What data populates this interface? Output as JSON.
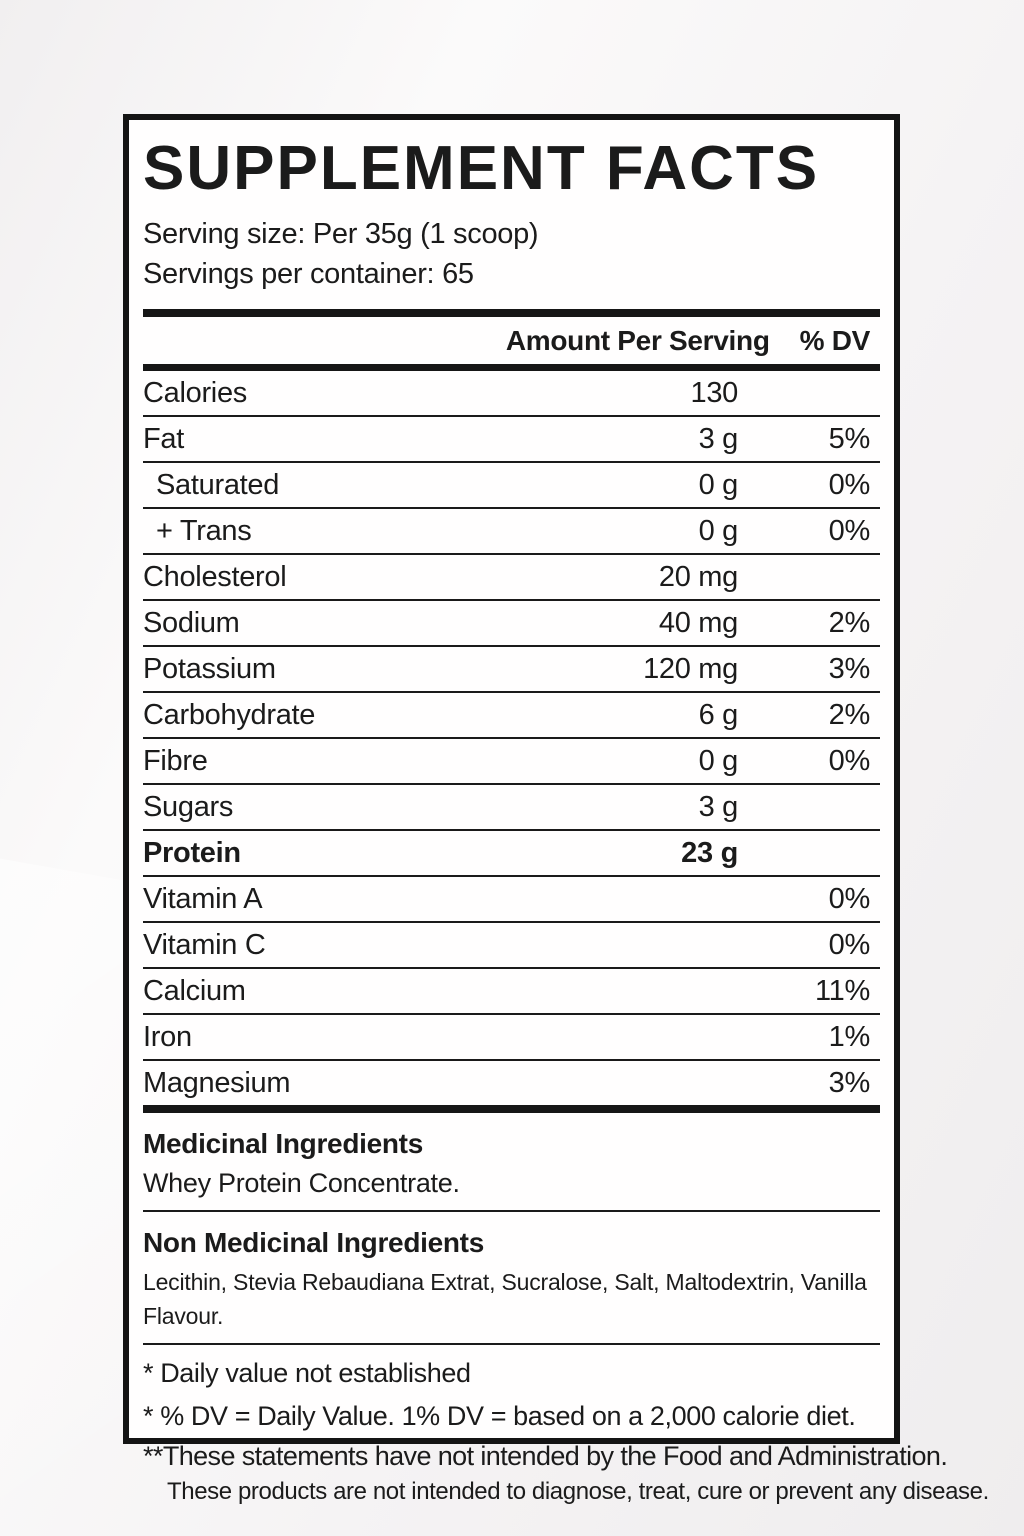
{
  "label": {
    "title": "SUPPLEMENT FACTS",
    "serving_size_line": "Serving size: Per 35g (1 scoop)",
    "servings_per_container_line": "Servings per container: 65",
    "columns": {
      "amount_header": "Amount Per Serving",
      "dv_header": "% DV"
    },
    "rows": [
      {
        "label": "Calories",
        "amount": "130",
        "dv": "",
        "bold": false,
        "indent": false
      },
      {
        "label": "Fat",
        "amount": "3 g",
        "dv": "5%",
        "bold": false,
        "indent": false
      },
      {
        "label": "Saturated",
        "amount": "0 g",
        "dv": "0%",
        "bold": false,
        "indent": true
      },
      {
        "label": "+ Trans",
        "amount": "0 g",
        "dv": "0%",
        "bold": false,
        "indent": true
      },
      {
        "label": "Cholesterol",
        "amount": "20 mg",
        "dv": "",
        "bold": false,
        "indent": false
      },
      {
        "label": "Sodium",
        "amount": "40 mg",
        "dv": "2%",
        "bold": false,
        "indent": false
      },
      {
        "label": "Potassium",
        "amount": "120 mg",
        "dv": "3%",
        "bold": false,
        "indent": false
      },
      {
        "label": "Carbohydrate",
        "amount": "6 g",
        "dv": "2%",
        "bold": false,
        "indent": false
      },
      {
        "label": "Fibre",
        "amount": "0 g",
        "dv": "0%",
        "bold": false,
        "indent": false
      },
      {
        "label": "Sugars",
        "amount": "3 g",
        "dv": "",
        "bold": false,
        "indent": false
      },
      {
        "label": "Protein",
        "amount": "23 g",
        "dv": "",
        "bold": true,
        "indent": false
      },
      {
        "label": "Vitamin A",
        "amount": "",
        "dv": "0%",
        "bold": false,
        "indent": false
      },
      {
        "label": "Vitamin C",
        "amount": "",
        "dv": "0%",
        "bold": false,
        "indent": false
      },
      {
        "label": "Calcium",
        "amount": "",
        "dv": "11%",
        "bold": false,
        "indent": false
      },
      {
        "label": "Iron",
        "amount": "",
        "dv": "1%",
        "bold": false,
        "indent": false
      },
      {
        "label": "Magnesium",
        "amount": "",
        "dv": "3%",
        "bold": false,
        "indent": false
      }
    ],
    "sections": [
      {
        "heading": "Medicinal Ingredients",
        "text": "Whey Protein Concentrate."
      },
      {
        "heading": "Non Medicinal Ingredients",
        "text": "Lecithin, Stevia Rebaudiana Extrat, Sucralose, Salt, Maltodextrin, Vanilla Flavour."
      }
    ],
    "footnotes": [
      "* Daily value not established",
      "* % DV = Daily Value. 1% DV = based on a 2,000 calorie diet.",
      "**These statements have not intended by the Food and Administration.",
      "These products are not intended to diagnose, treat, cure or prevent any disease."
    ],
    "colors": {
      "text": "#1b1b1b",
      "rule_line": "#1a1a1a",
      "label_background": "#fffefe",
      "page_background": "#f3f1f2"
    }
  }
}
